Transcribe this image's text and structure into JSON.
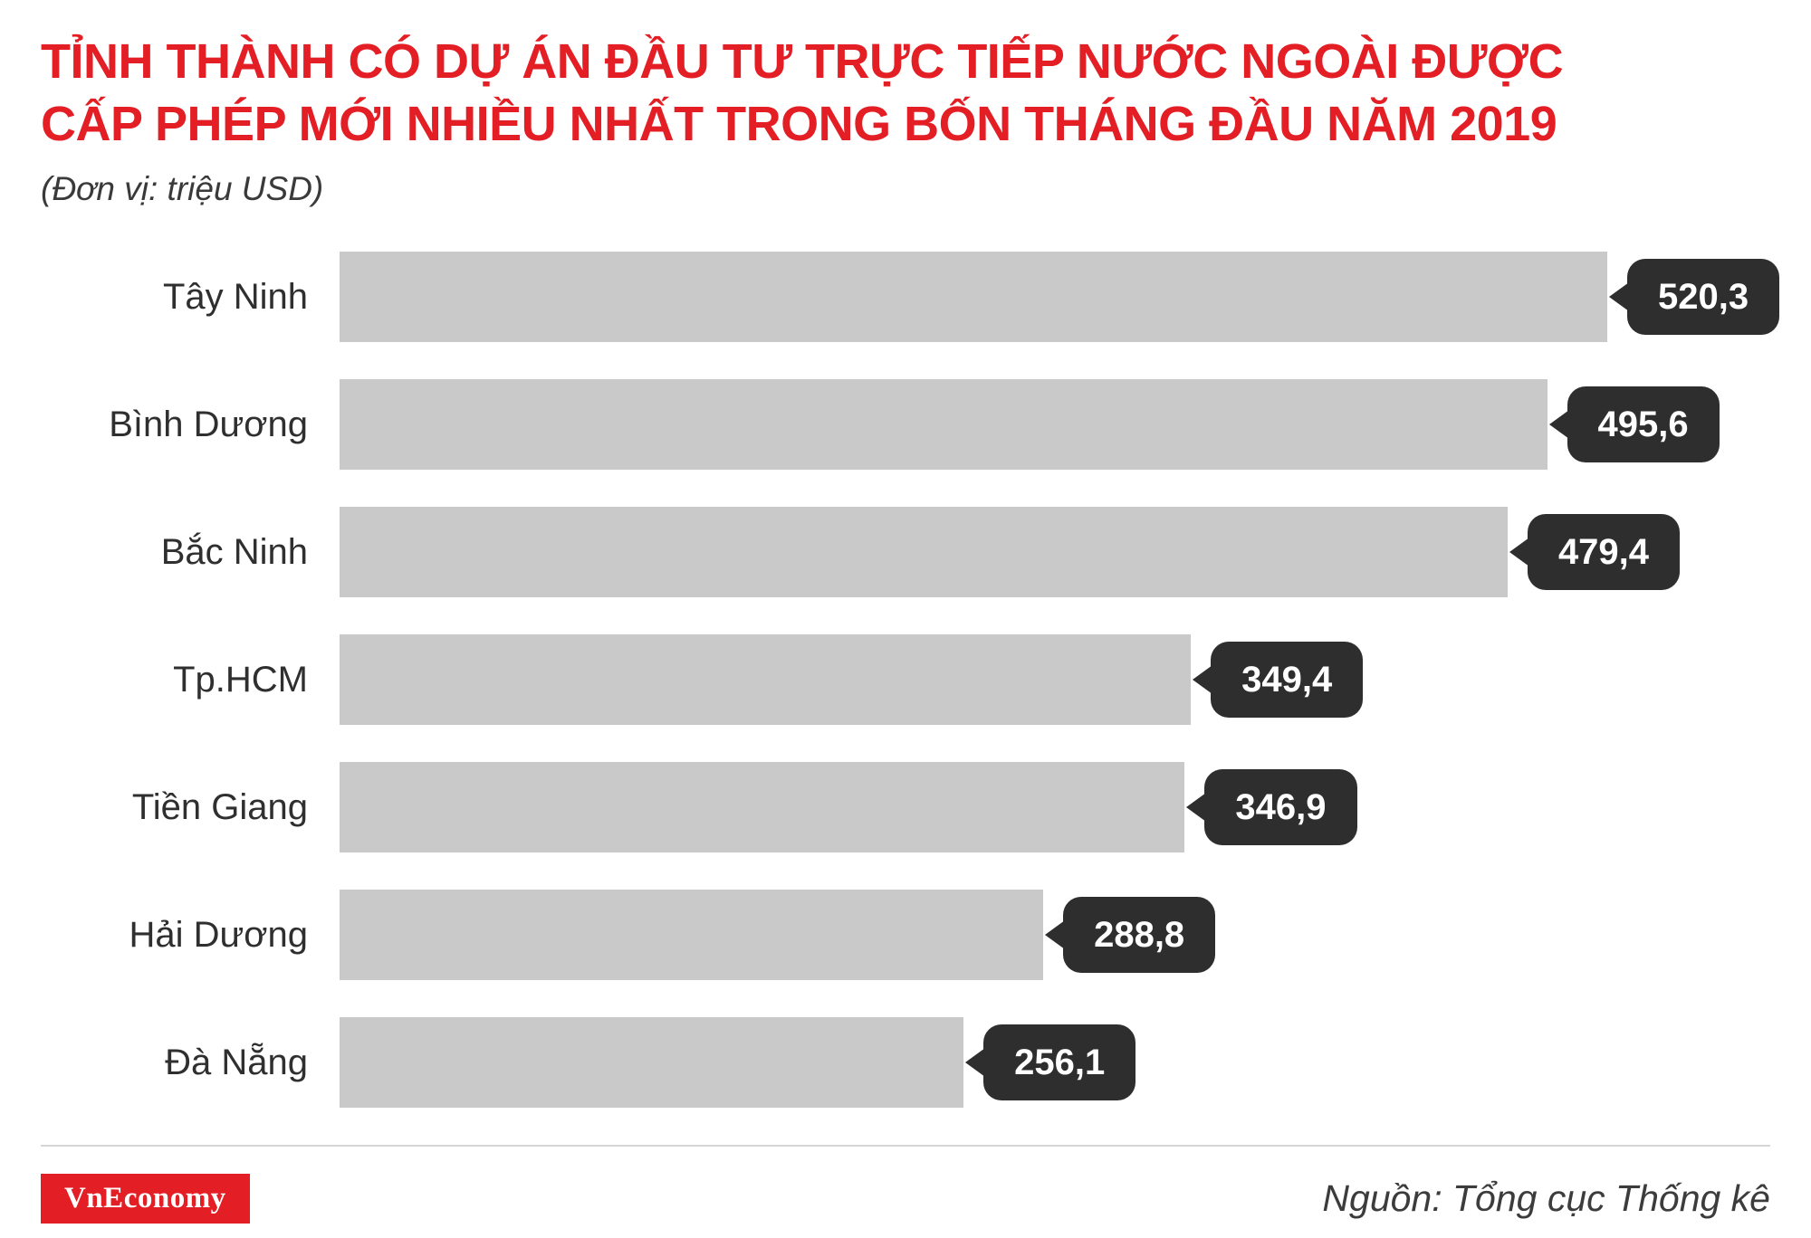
{
  "header": {
    "title_line1": "TỈNH THÀNH CÓ DỰ ÁN ĐẦU TƯ TRỰC TIẾP NƯỚC NGOÀI ĐƯỢC",
    "title_line2": "CẤP PHÉP MỚI NHIỀU NHẤT TRONG BỐN THÁNG ĐẦU NĂM 2019",
    "subtitle": "(Đơn vị: triệu USD)"
  },
  "chart_data": {
    "type": "bar",
    "orientation": "horizontal",
    "title": "Tỉnh thành có dự án đầu tư trực tiếp nước ngoài được cấp phép mới nhiều nhất trong bốn tháng đầu năm 2019",
    "unit": "triệu USD",
    "categories": [
      "Tây Ninh",
      "Bình Dương",
      "Bắc Ninh",
      "Tp.HCM",
      "Tiền Giang",
      "Hải Dương",
      "Đà Nẵng"
    ],
    "values": [
      520.3,
      495.6,
      479.4,
      349.4,
      346.9,
      288.8,
      256.1
    ],
    "value_labels": [
      "520,3",
      "495,6",
      "479,4",
      "349,4",
      "346,9",
      "288,8",
      "256,1"
    ],
    "xlabel": "",
    "ylabel": "",
    "xlim": [
      0,
      520.3
    ],
    "grid": false,
    "legend": false,
    "bar_color": "#c9c9c9",
    "callout_color": "#2e2e2e"
  },
  "footer": {
    "brand": "VnEconomy",
    "source": "Nguồn: Tổng cục Thống kê"
  },
  "colors": {
    "title_red": "#e31e25",
    "bar_gray": "#c9c9c9",
    "callout_dark": "#2e2e2e",
    "text_dark": "#2f2f2f"
  }
}
